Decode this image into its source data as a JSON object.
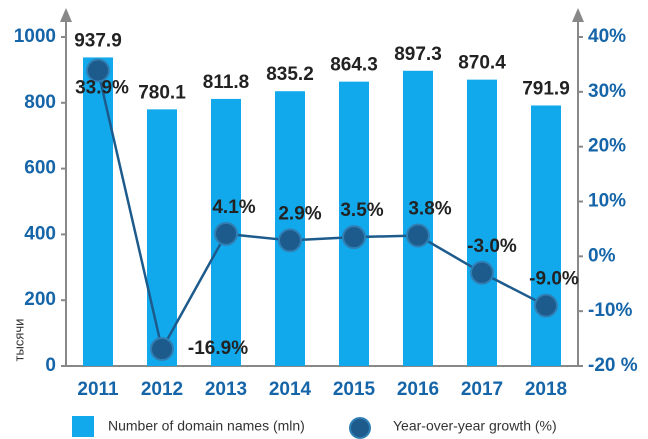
{
  "chart_data": {
    "type": "bar",
    "y_label": "тысячи",
    "categories": [
      "2011",
      "2012",
      "2013",
      "2014",
      "2015",
      "2016",
      "2017",
      "2018"
    ],
    "series": [
      {
        "name": "Number of domain names (mln)",
        "color": "#12a9ec",
        "values": [
          937.9,
          780.1,
          811.8,
          835.2,
          864.3,
          897.3,
          870.4,
          791.9
        ]
      },
      {
        "name": "Year-over-year growth (%)",
        "color": "#1d5b8c",
        "axis": "y2",
        "type": "line",
        "values": [
          33.9,
          -16.9,
          4.1,
          2.9,
          3.5,
          3.8,
          -3.0,
          -9.0
        ],
        "value_labels": [
          "33.9%",
          "-16.9%",
          "4.1%",
          "2.9%",
          "3.5%",
          "3.8%",
          "-3.0%",
          "-9.0%"
        ]
      }
    ],
    "ylim": [
      0,
      1000
    ],
    "yticks": [
      0,
      200,
      400,
      600,
      800,
      1000
    ],
    "y2lim": [
      -20,
      40
    ],
    "y2ticks": [
      {
        "value": -20,
        "label": "-20 %"
      },
      {
        "value": -10,
        "label": "-10%"
      },
      {
        "value": 0,
        "label": "0%"
      },
      {
        "value": 10,
        "label": "10%"
      },
      {
        "value": 20,
        "label": "20%"
      },
      {
        "value": 30,
        "label": "30%"
      },
      {
        "value": 40,
        "label": "40%"
      }
    ]
  }
}
